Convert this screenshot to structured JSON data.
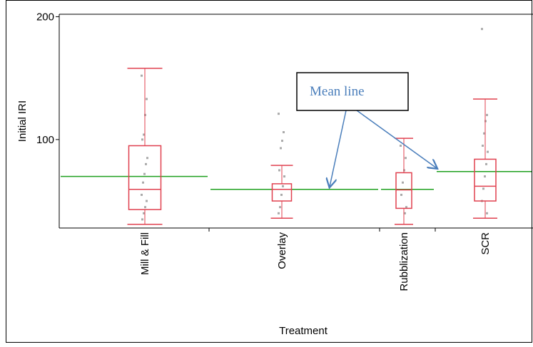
{
  "chart_data": {
    "type": "box",
    "x_label": "Treatment",
    "y_label": "Initial IRI",
    "annotation": "Mean line",
    "categories": [
      "Mill & Fill",
      "Overlay",
      "Rubblization",
      "SCR"
    ],
    "ylim": [
      28,
      202
    ],
    "yticks": [
      100,
      200
    ],
    "box_color": "#e0404f",
    "mean_color": "#1fa01f",
    "point_color": "#aaaaaa",
    "boxes": [
      {
        "min": 31,
        "q1": 43,
        "median": 59.5,
        "q3": 95,
        "max": 158,
        "mean": 70,
        "points": [
          152,
          133,
          120,
          104,
          100,
          85,
          80,
          72,
          65,
          55,
          50,
          45,
          40,
          35
        ]
      },
      {
        "min": 36,
        "q1": 50,
        "median": 59.5,
        "q3": 64,
        "max": 79,
        "mean": 59.5,
        "points": [
          121,
          106,
          99,
          93,
          75,
          70,
          62,
          55,
          45,
          40
        ]
      },
      {
        "min": 31,
        "q1": 44,
        "median": 59,
        "q3": 73,
        "max": 101,
        "mean": 59.5,
        "points": [
          95,
          85,
          75,
          65,
          55,
          45,
          40
        ]
      },
      {
        "min": 36,
        "q1": 50,
        "median": 62,
        "q3": 84,
        "max": 133,
        "mean": 74,
        "points": [
          190,
          120,
          115,
          105,
          95,
          90,
          80,
          70,
          60,
          50,
          40
        ]
      }
    ]
  }
}
